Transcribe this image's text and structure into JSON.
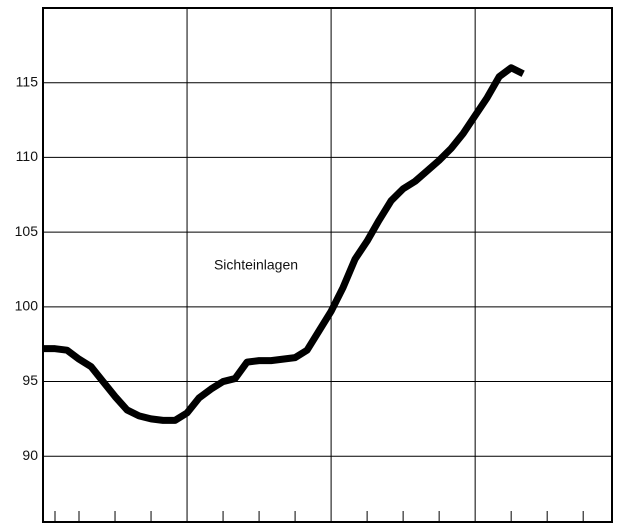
{
  "chart_data": {
    "type": "line",
    "annotation": "Sichteinlagen",
    "x": [
      0,
      1,
      2,
      3,
      4,
      5,
      6,
      7,
      8,
      9,
      10,
      11,
      12,
      13,
      14,
      15,
      16,
      17,
      18,
      19,
      20,
      21,
      22,
      23,
      24,
      25,
      26,
      27,
      28,
      29,
      30,
      31,
      32,
      33,
      34,
      35,
      36,
      37,
      38,
      39,
      40
    ],
    "series": [
      {
        "color": "#000000",
        "values": [
          97.2,
          97.2,
          97.1,
          96.5,
          96.0,
          95.0,
          94.0,
          93.1,
          92.7,
          92.5,
          92.4,
          92.4,
          92.9,
          93.9,
          94.5,
          95.0,
          95.2,
          96.3,
          96.4,
          96.4,
          96.5,
          96.6,
          97.1,
          98.4,
          99.7,
          101.3,
          103.2,
          104.4,
          105.8,
          107.1,
          107.9,
          108.4,
          109.1,
          109.8,
          110.6,
          111.6,
          112.8,
          114.0,
          115.4,
          116.0,
          115.6
        ]
      }
    ],
    "xlim": [
      0,
      47.4
    ],
    "xgrid": [
      12,
      24,
      36
    ],
    "xticks": [
      1,
      3,
      6,
      9,
      15,
      18,
      21,
      27,
      30,
      33,
      39,
      42,
      45
    ],
    "ylim": [
      85.6,
      120
    ],
    "yticks": [
      90,
      95,
      100,
      105,
      110,
      115
    ],
    "grid": true
  }
}
